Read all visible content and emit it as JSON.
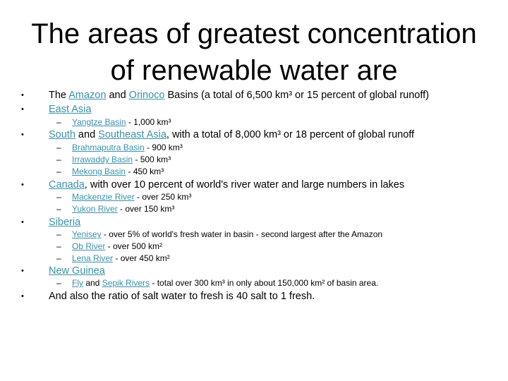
{
  "title": {
    "line1": "The areas of greatest concentration",
    "line2": "of renewable water are"
  },
  "bullet_glyph": "•",
  "dash_glyph": "–",
  "items": {
    "amazon": {
      "pre": "The ",
      "link1": "Amazon",
      "mid": " and ",
      "link2": "Orinoco",
      "post": " Basins (a total of 6,500 km³ or 15 percent of global runoff)"
    },
    "east_asia": {
      "link": "East Asia",
      "sub": [
        {
          "link": "Yangtze Basin",
          "text": " - 1,000 km³"
        }
      ]
    },
    "south_asia": {
      "link1": "South",
      "mid": " and ",
      "link2": "Southeast Asia",
      "post": ", with a total of 8,000 km³ or 18 percent of global runoff",
      "sub": [
        {
          "link": "Brahmaputra Basin",
          "text": " - 900 km³"
        },
        {
          "link": "Irrawaddy Basin",
          "text": " - 500 km³"
        },
        {
          "link": "Mekong Basin",
          "text": " - 450 km³"
        }
      ]
    },
    "canada": {
      "link": "Canada",
      "post": ", with over 10 percent of world's river water and large numbers in lakes",
      "sub": [
        {
          "link": "Mackenzie River",
          "text": " - over 250 km³"
        },
        {
          "link": "Yukon River",
          "text": " - over 150 km³"
        }
      ]
    },
    "siberia": {
      "link": "Siberia",
      "sub": [
        {
          "link": "Yenisey",
          "text": " - over 5% of world's fresh water in basin - second largest after the Amazon"
        },
        {
          "link": "Ob River",
          "text": " - over 500 km²"
        },
        {
          "link": "Lena River",
          "text": " - over 450 km²"
        }
      ]
    },
    "new_guinea": {
      "link": "New Guinea",
      "sub": [
        {
          "link1": "Fly",
          "mid": " and ",
          "link2": "Sepik Rivers",
          "text": " - total over 300 km³ in only about 150,000 km² of basin area."
        }
      ]
    },
    "salt": {
      "text": "And also the ratio of salt water to fresh is 40 salt to 1 fresh."
    }
  }
}
